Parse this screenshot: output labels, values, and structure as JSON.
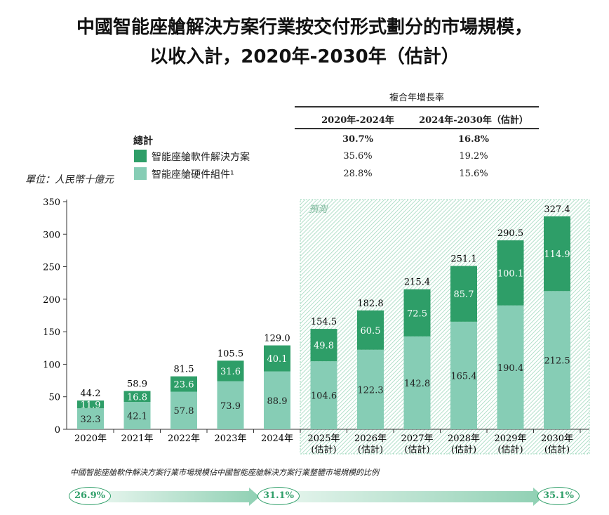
{
  "title_line1": "中國智能座艙解決方案行業按交付形式劃分的市場規模，",
  "title_line2": "以收入計，2020年-2030年（估計）",
  "cagr": {
    "header": "複合年增長率",
    "periods": [
      "2020年-2024年",
      "2024年-2030年（估計）"
    ],
    "rows": [
      {
        "label": "總計",
        "values": [
          "30.7%",
          "16.8%"
        ]
      },
      {
        "label": "智能座艙軟件解決方案",
        "values": [
          "35.6%",
          "19.2%"
        ]
      },
      {
        "label": "智能座艙硬件組件¹",
        "values": [
          "28.8%",
          "15.6%"
        ]
      }
    ]
  },
  "unit": "單位：人民幣十億元",
  "forecast_label": "預測",
  "colors": {
    "software": "#2e9e68",
    "hardware": "#86cdb5"
  },
  "chart_data": {
    "type": "bar",
    "stacked": true,
    "categories": [
      "2020年",
      "2021年",
      "2022年",
      "2023年",
      "2024年",
      "2025年\n(估計)",
      "2026年\n(估計)",
      "2027年\n(估計)",
      "2028年\n(估計)",
      "2029年\n(估計)",
      "2030年\n(估計)"
    ],
    "series": [
      {
        "name": "智能座艙硬件組件",
        "values": [
          32.3,
          42.1,
          57.8,
          73.9,
          88.9,
          104.6,
          122.3,
          142.8,
          165.4,
          190.4,
          212.5
        ]
      },
      {
        "name": "智能座艙軟件解決方案",
        "values": [
          11.9,
          16.8,
          23.6,
          31.6,
          40.1,
          49.8,
          60.5,
          72.5,
          85.7,
          100.1,
          114.9
        ]
      }
    ],
    "totals": [
      "44.2",
      "58.9",
      "81.5",
      "105.5",
      "129.0",
      "154.5",
      "182.8",
      "215.4",
      "251.1",
      "290.5",
      "327.4"
    ],
    "yticks": [
      0,
      50,
      100,
      150,
      200,
      250,
      300,
      350
    ],
    "ylim": [
      0,
      350
    ]
  },
  "share": {
    "caption": "中國智能座艙軟件解決方案行業市場規模佔中國智能座艙解決方案行業整體市場規模的比例",
    "values": [
      "26.9%",
      "31.1%",
      "35.1%"
    ]
  }
}
